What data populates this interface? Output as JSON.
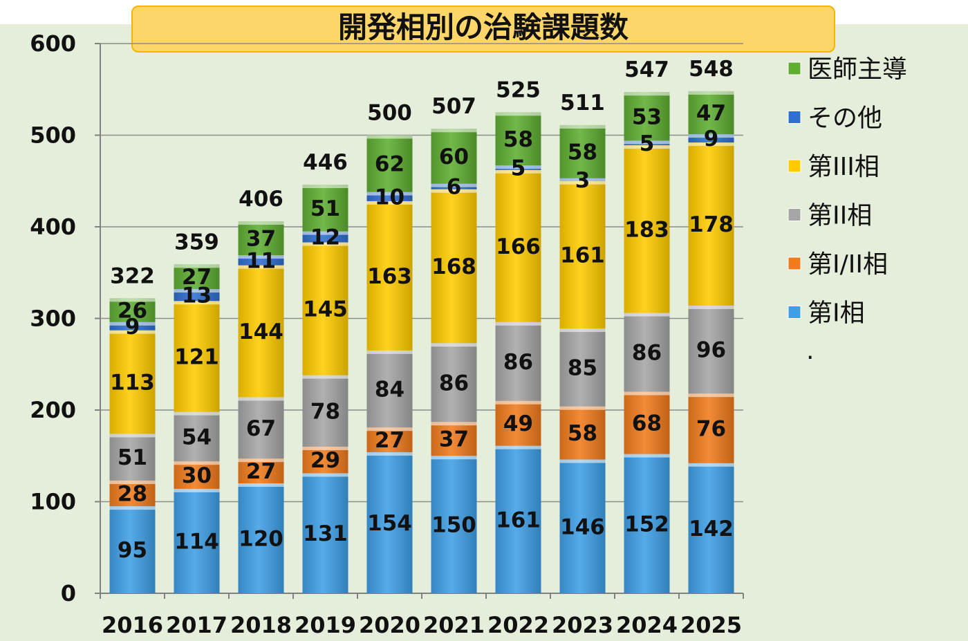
{
  "chart_data": {
    "type": "bar",
    "stacked": true,
    "title": "開発相別の治験課題数",
    "categories": [
      "2016",
      "2017",
      "2018",
      "2019",
      "2020",
      "2021",
      "2022",
      "2023",
      "2024",
      "2025"
    ],
    "ylim": [
      0,
      600
    ],
    "yticks": [
      "0",
      "100",
      "200",
      "300",
      "400",
      "500",
      "600"
    ],
    "grid": true,
    "legend_position": "right",
    "series": [
      {
        "name": "第I相",
        "color": "#3f9fe6",
        "values": [
          95,
          114,
          120,
          131,
          154,
          150,
          161,
          146,
          152,
          142
        ]
      },
      {
        "name": "第I/II相",
        "color": "#f07b1d",
        "values": [
          28,
          30,
          27,
          29,
          27,
          37,
          49,
          58,
          68,
          76
        ]
      },
      {
        "name": "第II相",
        "color": "#a6a6a6",
        "values": [
          51,
          54,
          67,
          78,
          84,
          86,
          86,
          85,
          86,
          96
        ]
      },
      {
        "name": "第III相",
        "color": "#ffcc00",
        "values": [
          113,
          121,
          144,
          145,
          163,
          168,
          166,
          161,
          183,
          178
        ]
      },
      {
        "name": "その他",
        "color": "#2f6fd0",
        "values": [
          9,
          13,
          11,
          12,
          10,
          6,
          5,
          3,
          5,
          9
        ]
      },
      {
        "name": "医師主導",
        "color": "#5fae32",
        "values": [
          26,
          27,
          37,
          51,
          62,
          60,
          58,
          58,
          53,
          47
        ]
      }
    ],
    "totals": [
      322,
      359,
      406,
      446,
      500,
      507,
      525,
      511,
      547,
      548
    ],
    "legend_order": [
      "医師主導",
      "その他",
      "第III相",
      "第II相",
      "第I/II相",
      "第I相"
    ],
    "legend_extra": "."
  }
}
